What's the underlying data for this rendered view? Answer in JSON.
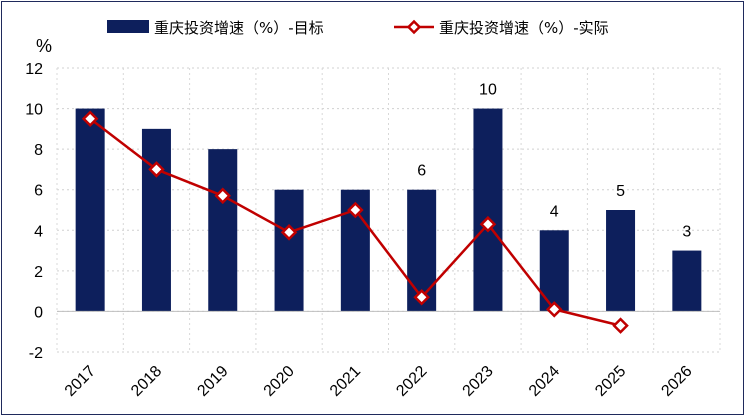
{
  "chart_data": {
    "type": "bar",
    "categories": [
      "2017",
      "2018",
      "2019",
      "2020",
      "2021",
      "2022",
      "2023",
      "2024",
      "2025",
      "2026"
    ],
    "ylabel": "%",
    "ylim": [
      -2,
      12
    ],
    "yticks": [
      -2,
      0,
      2,
      4,
      6,
      8,
      10,
      12
    ],
    "grid": true,
    "legend_position": "top",
    "series": [
      {
        "name": "重庆投资增速（%）-目标",
        "type": "bar",
        "color": "#0d1f5c",
        "values": [
          10,
          9,
          8,
          6,
          6,
          6,
          10,
          4,
          5,
          3
        ],
        "data_labels": [
          "",
          "",
          "",
          "",
          "",
          "6",
          "10",
          "4",
          "5",
          "3"
        ]
      },
      {
        "name": "重庆投资增速（%）-实际",
        "type": "line",
        "color": "#c00000",
        "marker": "diamond",
        "values": [
          9.5,
          7.0,
          5.7,
          3.9,
          5.0,
          0.7,
          4.3,
          0.1,
          -0.7,
          null
        ]
      }
    ]
  }
}
